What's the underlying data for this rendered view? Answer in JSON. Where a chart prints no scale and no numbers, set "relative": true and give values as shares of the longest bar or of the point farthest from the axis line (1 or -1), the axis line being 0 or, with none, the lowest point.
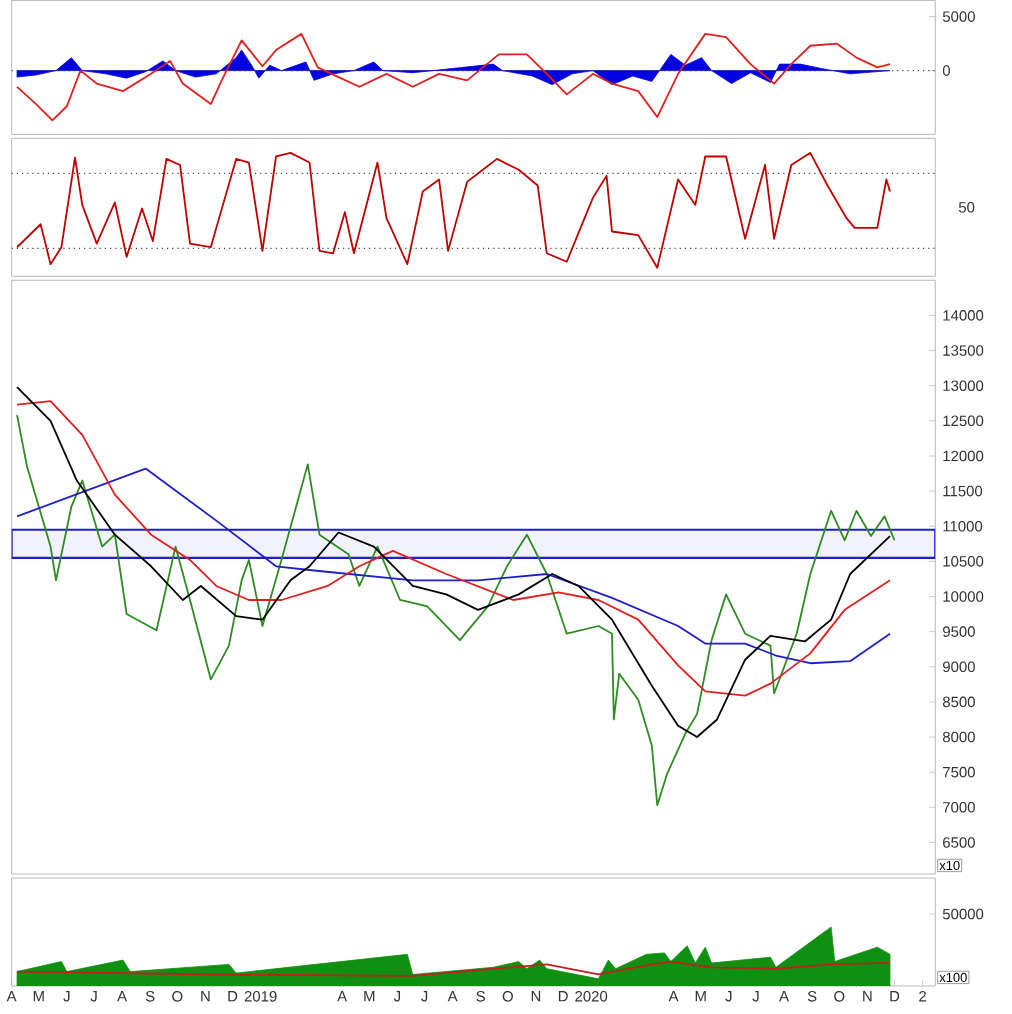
{
  "chart_data": [
    {
      "type": "line",
      "xlim": [
        "2018-04-01",
        "2021-01-15"
      ],
      "ylim": [
        -5900,
        6500
      ],
      "yticks": [
        0,
        5000
      ],
      "tick_labels": "y",
      "ref_lines": [
        {
          "axis": "y",
          "value": 0,
          "color": "#404040",
          "line_style": "dotted"
        }
      ],
      "series": [
        {
          "type": "area",
          "color": "#0000e0",
          "x": [
            "2018-04-07",
            "2018-04-28",
            "2018-05-20",
            "2018-06-06",
            "2018-06-18",
            "2018-07-14",
            "2018-08-06",
            "2018-08-27",
            "2018-09-15",
            "2018-09-29",
            "2018-10-21",
            "2018-11-13",
            "2018-12-05",
            "2018-12-11",
            "2018-12-22",
            "2018-12-30",
            "2019-01-11",
            "2019-01-24",
            "2019-02-20",
            "2019-03-01",
            "2019-03-22",
            "2019-04-14",
            "2019-05-06",
            "2019-05-16",
            "2019-06-18",
            "2019-09-15",
            "2019-09-25",
            "2019-10-28",
            "2019-11-19",
            "2019-12-11",
            "2020-01-03",
            "2020-01-24",
            "2020-02-16",
            "2020-03-08",
            "2020-03-29",
            "2020-04-14",
            "2020-05-02",
            "2020-05-13",
            "2020-06-04",
            "2020-06-25",
            "2020-07-17",
            "2020-07-27",
            "2020-08-19",
            "2020-09-11",
            "2020-10-13",
            "2020-11-26"
          ],
          "values": [
            -600,
            -400,
            0,
            1200,
            0,
            -300,
            -700,
            -100,
            900,
            0,
            -600,
            -300,
            1200,
            1900,
            500,
            -700,
            500,
            0,
            800,
            -900,
            -300,
            0,
            800,
            0,
            -200,
            600,
            0,
            -500,
            -1300,
            -300,
            0,
            -1300,
            -500,
            -1000,
            1500,
            500,
            1200,
            0,
            -1200,
            -200,
            -1100,
            600,
            600,
            200,
            -300,
            0
          ]
        },
        {
          "color": "#e02020",
          "x": [
            "2018-04-07",
            "2018-04-28",
            "2018-05-16",
            "2018-06-01",
            "2018-06-16",
            "2018-07-04",
            "2018-08-02",
            "2018-09-02",
            "2018-09-23",
            "2018-10-07",
            "2018-11-07",
            "2018-11-19",
            "2018-12-11",
            "2019-01-03",
            "2019-01-18",
            "2019-02-15",
            "2019-03-05",
            "2019-03-28",
            "2019-04-20",
            "2019-05-20",
            "2019-06-18",
            "2019-07-17",
            "2019-08-17",
            "2019-09-21",
            "2019-10-22",
            "2019-11-13",
            "2019-12-05",
            "2020-01-03",
            "2020-01-24",
            "2020-02-22",
            "2020-03-14",
            "2020-04-06",
            "2020-05-06",
            "2020-05-29",
            "2020-06-25",
            "2020-07-21",
            "2020-08-09",
            "2020-08-30",
            "2020-09-28",
            "2020-10-20",
            "2020-11-12",
            "2020-11-26"
          ],
          "values": [
            -1500,
            -3100,
            -4600,
            -3300,
            0,
            -1200,
            -1900,
            -300,
            900,
            -1200,
            -3100,
            -900,
            2800,
            400,
            1900,
            3400,
            300,
            -600,
            -1500,
            -300,
            -1500,
            -300,
            -900,
            1500,
            1500,
            -300,
            -2200,
            -300,
            -1200,
            -1900,
            -4300,
            -300,
            3400,
            3100,
            600,
            -1200,
            600,
            2300,
            2500,
            1200,
            300,
            600
          ]
        }
      ]
    },
    {
      "type": "line",
      "relative": true,
      "xlim": [
        "2018-04-01",
        "2021-01-15"
      ],
      "tick_labels": "y",
      "annotations": [
        "50"
      ],
      "ref_lines": [
        {
          "axis": "y",
          "value": 0.83,
          "color": "#404040",
          "line_style": "dotted"
        },
        {
          "axis": "y",
          "value": 0.21,
          "color": "#404040",
          "line_style": "dotted"
        }
      ],
      "series": [
        {
          "color": "#c00000",
          "x": [
            "2018-04-07",
            "2018-05-03",
            "2018-05-14",
            "2018-05-26",
            "2018-06-10",
            "2018-06-18",
            "2018-07-04",
            "2018-07-24",
            "2018-08-06",
            "2018-08-23",
            "2018-09-04",
            "2018-09-19",
            "2018-10-04",
            "2018-10-15",
            "2018-11-07",
            "2018-11-13",
            "2018-12-05",
            "2018-12-19",
            "2019-01-03",
            "2019-01-18",
            "2019-02-03",
            "2019-02-24",
            "2019-03-07",
            "2019-03-22",
            "2019-04-04",
            "2019-04-14",
            "2019-05-10",
            "2019-05-20",
            "2019-06-12",
            "2019-06-29",
            "2019-07-17",
            "2019-07-27",
            "2019-08-17",
            "2019-08-29",
            "2019-09-19",
            "2019-10-13",
            "2019-11-03",
            "2019-11-13",
            "2019-12-05",
            "2020-01-03",
            "2020-01-18",
            "2020-01-24",
            "2020-02-22",
            "2020-03-14",
            "2020-04-06",
            "2020-04-25",
            "2020-05-06",
            "2020-05-29",
            "2020-06-19",
            "2020-07-11",
            "2020-07-21",
            "2020-08-09",
            "2020-08-30",
            "2020-09-18",
            "2020-10-09",
            "2020-10-18",
            "2020-11-12",
            "2020-11-22",
            "2020-11-26"
          ],
          "values": [
            0.22,
            0.41,
            0.08,
            0.22,
            0.96,
            0.57,
            0.25,
            0.59,
            0.14,
            0.54,
            0.27,
            0.95,
            0.9,
            0.25,
            0.22,
            0.38,
            0.95,
            0.92,
            0.19,
            0.97,
            1,
            0.92,
            0.19,
            0.17,
            0.51,
            0.17,
            0.92,
            0.46,
            0.08,
            0.68,
            0.78,
            0.19,
            0.76,
            0.83,
            0.95,
            0.86,
            0.73,
            0.17,
            0.1,
            0.63,
            0.81,
            0.35,
            0.32,
            0.05,
            0.78,
            0.57,
            0.97,
            0.97,
            0.29,
            0.9,
            0.29,
            0.9,
            1,
            0.73,
            0.46,
            0.38,
            0.38,
            0.78,
            0.68
          ]
        }
      ]
    },
    {
      "type": "line",
      "xlim": [
        "2018-04-01",
        "2021-01-15"
      ],
      "ylim": [
        6050,
        14500
      ],
      "yticks": [
        6500,
        7000,
        7500,
        8000,
        8500,
        9000,
        9500,
        10000,
        10500,
        11000,
        11500,
        12000,
        12500,
        13000,
        13500,
        14000
      ],
      "tick_labels": "y",
      "annotations": [
        "x10"
      ],
      "bands": [
        {
          "axis": "y",
          "from": 10550,
          "to": 10950,
          "color": "#1f1fc8"
        }
      ],
      "series": [
        {
          "color": "#2e8b22",
          "x": [
            "2018-04-07",
            "2018-04-18",
            "2018-05-14",
            "2018-05-20",
            "2018-06-06",
            "2018-06-18",
            "2018-07-10",
            "2018-07-24",
            "2018-08-06",
            "2018-09-08",
            "2018-09-29",
            "2018-10-15",
            "2018-11-07",
            "2018-11-27",
            "2018-12-11",
            "2018-12-19",
            "2019-01-03",
            "2019-01-24",
            "2019-02-22",
            "2019-03-07",
            "2019-04-08",
            "2019-04-20",
            "2019-05-10",
            "2019-06-04",
            "2019-07-04",
            "2019-08-09",
            "2019-09-09",
            "2019-09-30",
            "2019-10-22",
            "2019-11-13",
            "2019-12-05",
            "2020-01-09",
            "2020-01-24",
            "2020-01-26",
            "2020-02-01",
            "2020-02-22",
            "2020-03-08",
            "2020-03-14",
            "2020-03-25",
            "2020-04-14",
            "2020-04-27",
            "2020-05-13",
            "2020-05-29",
            "2020-06-19",
            "2020-07-17",
            "2020-07-21",
            "2020-08-15",
            "2020-08-30",
            "2020-09-22",
            "2020-10-07",
            "2020-10-20",
            "2020-11-05",
            "2020-11-20",
            "2020-12-01"
          ],
          "values": [
            12580,
            11850,
            10710,
            10230,
            11280,
            11650,
            10710,
            10880,
            9750,
            9520,
            10710,
            9950,
            8820,
            9300,
            10230,
            10520,
            9580,
            10520,
            11880,
            10880,
            10600,
            10150,
            10710,
            9950,
            9860,
            9380,
            9860,
            10430,
            10880,
            10320,
            9470,
            9580,
            9470,
            8250,
            8900,
            8530,
            7880,
            7030,
            7480,
            8050,
            8330,
            9380,
            10030,
            9470,
            9300,
            8620,
            9470,
            10320,
            11220,
            10800,
            11220,
            10860,
            11140,
            10800
          ]
        },
        {
          "color": "#1f1fc8",
          "x": [
            "2018-04-07",
            "2018-08-27",
            "2018-11-13",
            "2019-01-18",
            "2019-03-01",
            "2019-06-18",
            "2019-08-29",
            "2019-11-13",
            "2020-01-24",
            "2020-04-06",
            "2020-05-06",
            "2020-06-19",
            "2020-07-23",
            "2020-08-30",
            "2020-10-13",
            "2020-11-26"
          ],
          "values": [
            11140,
            11820,
            11080,
            10430,
            10370,
            10230,
            10230,
            10320,
            9980,
            9580,
            9330,
            9330,
            9160,
            9050,
            9080,
            9470
          ]
        },
        {
          "color": "#e02020",
          "x": [
            "2018-04-07",
            "2018-05-14",
            "2018-06-18",
            "2018-07-24",
            "2018-09-02",
            "2018-10-15",
            "2018-11-13",
            "2018-12-19",
            "2019-01-24",
            "2019-03-16",
            "2019-04-20",
            "2019-05-27",
            "2019-07-25",
            "2019-10-07",
            "2019-11-26",
            "2020-01-09",
            "2020-02-22",
            "2020-04-06",
            "2020-05-06",
            "2020-06-19",
            "2020-07-17",
            "2020-08-30",
            "2020-10-07",
            "2020-11-26"
          ],
          "values": [
            12730,
            12780,
            12300,
            11450,
            10880,
            10520,
            10150,
            9950,
            9950,
            10150,
            10430,
            10650,
            10320,
            9950,
            10060,
            9950,
            9670,
            9020,
            8650,
            8590,
            8760,
            9190,
            9810,
            10230
          ]
        },
        {
          "color": "#000000",
          "x": [
            "2018-04-07",
            "2018-05-14",
            "2018-06-12",
            "2018-07-24",
            "2018-09-02",
            "2018-10-07",
            "2018-10-27",
            "2018-12-05",
            "2019-01-03",
            "2019-02-03",
            "2019-02-24",
            "2019-03-28",
            "2019-05-06",
            "2019-06-18",
            "2019-07-25",
            "2019-08-29",
            "2019-10-13",
            "2019-11-19",
            "2019-12-18",
            "2020-01-24",
            "2020-03-08",
            "2020-04-06",
            "2020-04-27",
            "2020-05-19",
            "2020-06-19",
            "2020-07-17",
            "2020-08-24",
            "2020-09-22",
            "2020-10-13",
            "2020-11-26"
          ],
          "values": [
            12980,
            12500,
            11650,
            10880,
            10430,
            9950,
            10150,
            9720,
            9670,
            10230,
            10430,
            10910,
            10710,
            10150,
            10030,
            9810,
            10030,
            10320,
            10150,
            9670,
            8730,
            8160,
            8000,
            8250,
            9100,
            9440,
            9360,
            9670,
            10320,
            10860
          ]
        }
      ]
    },
    {
      "type": "line",
      "xlim": [
        "2018-04-01",
        "2021-01-15"
      ],
      "ylim": [
        0,
        75000
      ],
      "yticks": [
        50000
      ],
      "annotations": [
        "x100"
      ],
      "xticks": [
        {
          "value": "2018-04-01",
          "label": "A"
        },
        {
          "value": "2018-05-01",
          "label": "M"
        },
        {
          "value": "2018-06-01",
          "label": "J"
        },
        {
          "value": "2018-07-01",
          "label": "J"
        },
        {
          "value": "2018-08-01",
          "label": "A"
        },
        {
          "value": "2018-09-01",
          "label": "S"
        },
        {
          "value": "2018-10-01",
          "label": "O"
        },
        {
          "value": "2018-11-01",
          "label": "N"
        },
        {
          "value": "2018-12-01",
          "label": "D"
        },
        {
          "value": "2019-01-01",
          "label": "2019"
        },
        {
          "value": "2019-02-01",
          "label": null
        },
        {
          "value": "2019-03-01",
          "label": null
        },
        {
          "value": "2019-04-01",
          "label": "A"
        },
        {
          "value": "2019-05-01",
          "label": "M"
        },
        {
          "value": "2019-06-01",
          "label": "J"
        },
        {
          "value": "2019-07-01",
          "label": "J"
        },
        {
          "value": "2019-08-01",
          "label": "A"
        },
        {
          "value": "2019-09-01",
          "label": "S"
        },
        {
          "value": "2019-10-01",
          "label": "O"
        },
        {
          "value": "2019-11-01",
          "label": "N"
        },
        {
          "value": "2019-12-01",
          "label": "D"
        },
        {
          "value": "2020-01-01",
          "label": "2020"
        },
        {
          "value": "2020-02-01",
          "label": null
        },
        {
          "value": "2020-03-01",
          "label": null
        },
        {
          "value": "2020-04-01",
          "label": "A"
        },
        {
          "value": "2020-05-01",
          "label": "M"
        },
        {
          "value": "2020-06-01",
          "label": "J"
        },
        {
          "value": "2020-07-01",
          "label": "J"
        },
        {
          "value": "2020-08-01",
          "label": "A"
        },
        {
          "value": "2020-09-01",
          "label": "S"
        },
        {
          "value": "2020-10-01",
          "label": "O"
        },
        {
          "value": "2020-11-01",
          "label": "N"
        },
        {
          "value": "2020-12-01",
          "label": "D"
        },
        {
          "value": "2021-01-01",
          "label": "2"
        }
      ],
      "series": [
        {
          "type": "area",
          "color": "#109010",
          "x": [
            "2018-04-07",
            "2018-05-26",
            "2018-06-01",
            "2018-08-02",
            "2018-08-10",
            "2018-11-27",
            "2018-12-05",
            "2019-06-12",
            "2019-06-18",
            "2019-09-15",
            "2019-10-13",
            "2019-10-22",
            "2019-11-05",
            "2019-11-13",
            "2020-01-09",
            "2020-01-20",
            "2020-01-28",
            "2020-03-02",
            "2020-03-22",
            "2020-03-29",
            "2020-04-16",
            "2020-04-25",
            "2020-05-06",
            "2020-05-13",
            "2020-07-17",
            "2020-07-23",
            "2020-09-22",
            "2020-09-26",
            "2020-11-12",
            "2020-11-26"
          ],
          "values": [
            10000,
            17000,
            10000,
            18000,
            10000,
            15000,
            9000,
            22000,
            8000,
            13000,
            17000,
            12000,
            18000,
            12000,
            5000,
            18000,
            12000,
            22000,
            23000,
            17000,
            28000,
            16000,
            27000,
            16000,
            20000,
            13000,
            41000,
            17000,
            27000,
            22000
          ]
        },
        {
          "color": "#c02020",
          "x": [
            "2018-04-07",
            "2018-11-13",
            "2019-06-18",
            "2019-09-15",
            "2019-11-13",
            "2020-01-09",
            "2020-03-08",
            "2020-03-29",
            "2020-05-13",
            "2020-07-23",
            "2020-09-22",
            "2020-11-26"
          ],
          "values": [
            10000,
            8000,
            7000,
            12000,
            15000,
            8000,
            15000,
            17000,
            13000,
            12000,
            15000,
            16000
          ]
        }
      ]
    }
  ]
}
